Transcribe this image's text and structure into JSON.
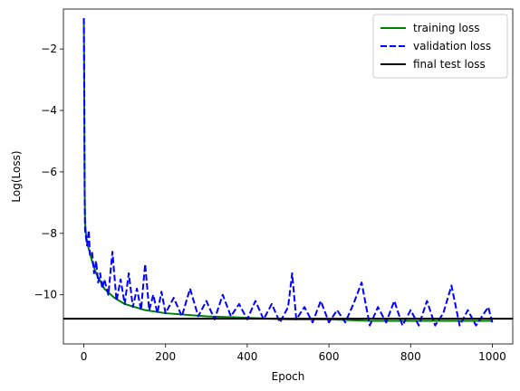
{
  "chart_data": {
    "type": "line",
    "title": "",
    "xlabel": "Epoch",
    "ylabel": "Log(Loss)",
    "xlim": [
      -50,
      1050
    ],
    "ylim": [
      -11.6,
      -0.7
    ],
    "xticks": [
      0,
      200,
      400,
      600,
      800,
      1000
    ],
    "yticks": [
      -10,
      -8,
      -6,
      -4,
      -2
    ],
    "xtick_labels": [
      "0",
      "200",
      "400",
      "600",
      "800",
      "1000"
    ],
    "ytick_labels": [
      "−10",
      "−8",
      "−6",
      "−4",
      "−2"
    ],
    "grid": false,
    "legend_position": "top-right",
    "series": [
      {
        "name": "training loss",
        "color": "#008000",
        "style": "solid",
        "x": [
          0,
          1,
          2,
          3,
          5,
          8,
          12,
          20,
          30,
          50,
          75,
          100,
          150,
          200,
          300,
          400,
          500,
          600,
          700,
          800,
          900,
          1000
        ],
        "values": [
          -1.0,
          -3.5,
          -6.5,
          -7.6,
          -8.0,
          -8.3,
          -8.5,
          -8.9,
          -9.3,
          -9.8,
          -10.1,
          -10.3,
          -10.5,
          -10.6,
          -10.7,
          -10.75,
          -10.8,
          -10.8,
          -10.85,
          -10.85,
          -10.85,
          -10.85
        ]
      },
      {
        "name": "validation loss",
        "color": "#0000ff",
        "style": "dashed",
        "x": [
          0,
          1,
          2,
          3,
          5,
          8,
          12,
          15,
          20,
          25,
          30,
          35,
          40,
          45,
          50,
          60,
          70,
          80,
          90,
          100,
          110,
          120,
          130,
          140,
          150,
          160,
          170,
          180,
          190,
          200,
          220,
          240,
          260,
          280,
          300,
          320,
          340,
          360,
          380,
          400,
          420,
          440,
          460,
          480,
          500,
          510,
          520,
          540,
          560,
          580,
          600,
          620,
          640,
          660,
          680,
          700,
          720,
          740,
          760,
          780,
          800,
          820,
          840,
          860,
          880,
          900,
          920,
          940,
          960,
          980,
          990,
          1000
        ],
        "values": [
          -1.0,
          -3.0,
          -6.8,
          -7.9,
          -8.1,
          -8.4,
          -7.9,
          -8.7,
          -8.6,
          -9.3,
          -8.9,
          -9.6,
          -9.3,
          -9.8,
          -9.5,
          -10.0,
          -8.6,
          -10.2,
          -9.5,
          -10.3,
          -9.3,
          -10.4,
          -9.8,
          -10.5,
          -9.0,
          -10.5,
          -10.0,
          -10.6,
          -9.9,
          -10.6,
          -10.1,
          -10.7,
          -9.8,
          -10.7,
          -10.2,
          -10.8,
          -10.0,
          -10.7,
          -10.3,
          -10.8,
          -10.2,
          -10.8,
          -10.3,
          -10.9,
          -10.4,
          -9.3,
          -10.8,
          -10.4,
          -10.9,
          -10.2,
          -10.9,
          -10.5,
          -10.9,
          -10.3,
          -9.6,
          -11.0,
          -10.4,
          -10.9,
          -10.2,
          -11.0,
          -10.5,
          -11.0,
          -10.2,
          -11.0,
          -10.6,
          -9.7,
          -11.0,
          -10.5,
          -11.0,
          -10.6,
          -10.4,
          -10.9
        ]
      },
      {
        "name": "final test loss",
        "color": "#000000",
        "style": "solid",
        "x": [
          -50,
          1050
        ],
        "values": [
          -10.78,
          -10.78
        ]
      }
    ]
  }
}
